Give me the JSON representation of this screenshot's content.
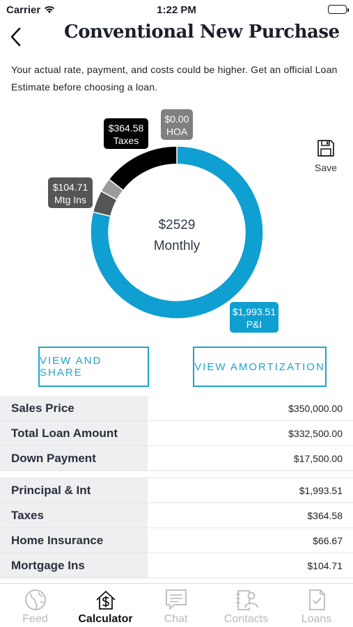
{
  "status": {
    "carrier": "Carrier",
    "time": "1:22 PM"
  },
  "header": {
    "title": "Conventional New Purchase"
  },
  "disclaimer": "Your actual rate, payment, and costs could be higher. Get an official Loan Estimate before choosing a loan.",
  "chart_data": {
    "type": "pie",
    "center_value": "$2529",
    "center_label": "Monthly",
    "slices": [
      {
        "name": "P&I",
        "value": 1993.51,
        "label": "$1,993.51",
        "color": "#0f9fd1"
      },
      {
        "name": "Mtg Ins",
        "value": 104.71,
        "label": "$104.71",
        "color": "#555555"
      },
      {
        "name": "Home Insurance",
        "value": 66.67,
        "label": "",
        "color": "#9c9c9c"
      },
      {
        "name": "Taxes",
        "value": 364.58,
        "label": "$364.58",
        "color": "#000000"
      },
      {
        "name": "HOA",
        "value": 0,
        "label": "$0.00",
        "color": "#808080"
      }
    ]
  },
  "save": {
    "label": "Save"
  },
  "buttons": {
    "share": "VIEW AND SHARE",
    "amortization": "VIEW AMORTIZATION"
  },
  "summary": [
    {
      "label": "Sales Price",
      "value": "$350,000.00"
    },
    {
      "label": "Total Loan Amount",
      "value": "$332,500.00"
    },
    {
      "label": "Down Payment",
      "value": "$17,500.00"
    }
  ],
  "breakdown": [
    {
      "label": "Principal & Int",
      "value": "$1,993.51"
    },
    {
      "label": "Taxes",
      "value": "$364.58"
    },
    {
      "label": "Home Insurance",
      "value": "$66.67"
    },
    {
      "label": "Mortgage Ins",
      "value": "$104.71"
    }
  ],
  "tabs": [
    {
      "label": "Feed",
      "icon": "globe-icon"
    },
    {
      "label": "Calculator",
      "icon": "house-dollar-icon"
    },
    {
      "label": "Chat",
      "icon": "chat-icon"
    },
    {
      "label": "Contacts",
      "icon": "contacts-icon"
    },
    {
      "label": "Loans",
      "icon": "document-check-icon"
    }
  ],
  "active_tab": "Calculator"
}
